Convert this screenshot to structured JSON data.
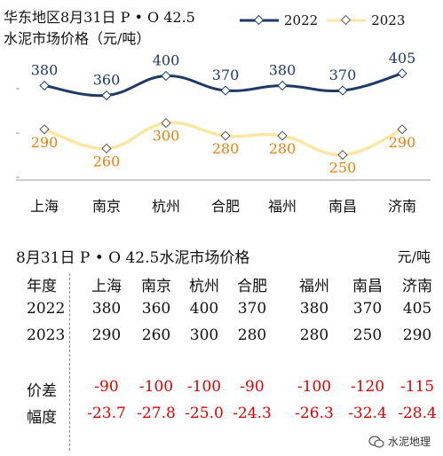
{
  "chart_title_line1": "华东地区8月31日  P • O 42.5",
  "chart_title_line2": "水泥市场价格（元/吨）",
  "chart_data": {
    "type": "line",
    "categories": [
      "上海",
      "南京",
      "杭州",
      "合肥",
      "福州",
      "南昌",
      "济南"
    ],
    "series": [
      {
        "name": "2022",
        "values": [
          380,
          360,
          400,
          370,
          380,
          370,
          405
        ],
        "color": "#1f3a68",
        "label_color": "#1f3a68"
      },
      {
        "name": "2023",
        "values": [
          290,
          260,
          300,
          280,
          280,
          250,
          290
        ],
        "color": "#fbe7a1",
        "label_color": "#f07f09"
      }
    ],
    "legend_position": "top-right",
    "grid": false
  },
  "table": {
    "title": "8月31日 P • O 42.5水泥市场价格",
    "unit": "元/吨",
    "header_label": "年度",
    "cities": [
      "上海",
      "南京",
      "杭州",
      "合肥",
      "福州",
      "南昌",
      "济南"
    ],
    "rows": [
      {
        "label": "2022",
        "values": [
          "380",
          "360",
          "400",
          "370",
          "380",
          "370",
          "405"
        ],
        "red": false
      },
      {
        "label": "2023",
        "values": [
          "290",
          "260",
          "300",
          "280",
          "280",
          "250",
          "290"
        ],
        "red": false
      },
      {
        "label": "价差",
        "values": [
          "-90",
          "-100",
          "-100",
          "-90",
          "-100",
          "-120",
          "-115"
        ],
        "red": true
      },
      {
        "label": "幅度",
        "values": [
          "-23.7",
          "-27.8",
          "-25.0",
          "-24.3",
          "-26.3",
          "-32.4",
          "-28.4"
        ],
        "red": true
      }
    ]
  },
  "watermark": "水泥地理"
}
